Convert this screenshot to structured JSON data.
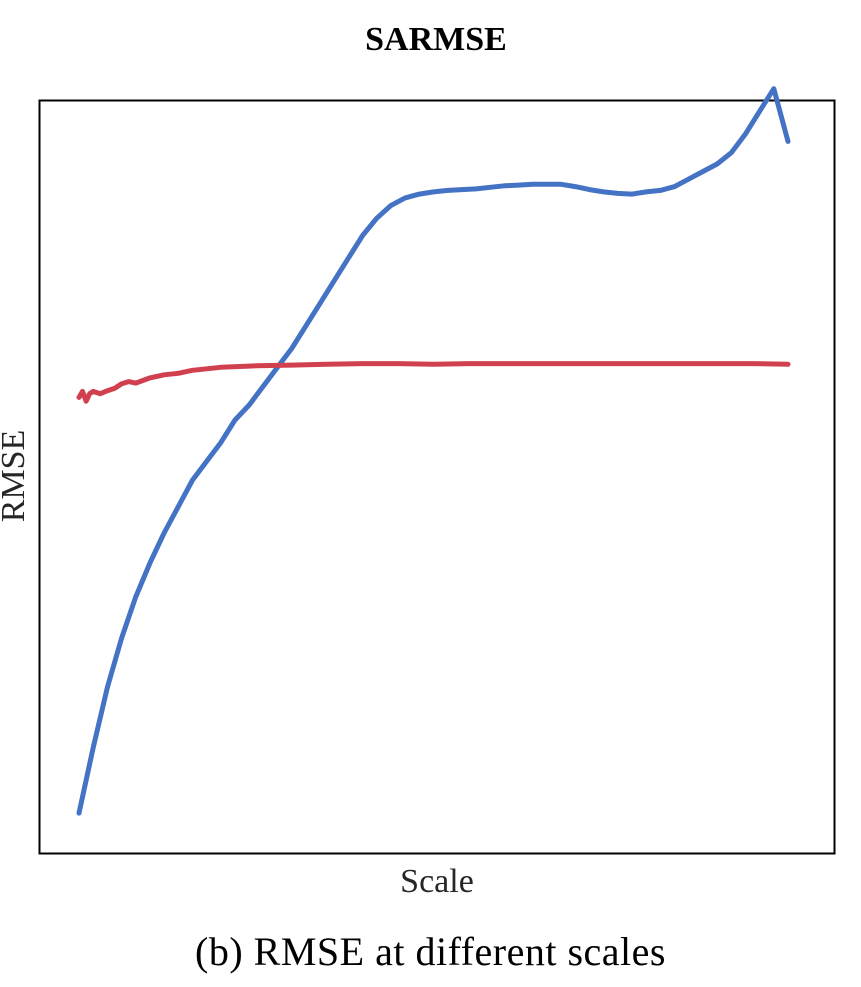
{
  "caption": "(b) RMSE at different scales",
  "chart_data": {
    "type": "line",
    "title": "SARMSE",
    "xlabel": "Scale",
    "ylabel": "RMSE",
    "xlim": [
      0,
      100
    ],
    "ylim": [
      0,
      100
    ],
    "grid": false,
    "legend": "none",
    "series": [
      {
        "color": "#4472C4",
        "x": [
          0,
          2,
          4,
          6,
          8,
          10,
          12,
          14,
          16,
          18,
          20,
          22,
          24,
          26,
          28,
          30,
          32,
          34,
          36,
          38,
          40,
          42,
          44,
          46,
          48,
          50,
          52,
          54,
          56,
          58,
          60,
          62,
          64,
          66,
          68,
          70,
          72,
          74,
          76,
          78,
          80,
          82,
          84,
          86,
          88,
          90,
          92,
          94,
          96,
          98,
          100
        ],
        "y": [
          5.3,
          14.0,
          22.0,
          28.5,
          34.0,
          38.5,
          42.5,
          46.0,
          49.5,
          52.0,
          54.5,
          57.5,
          59.5,
          62.0,
          64.5,
          67.0,
          70.0,
          73.0,
          76.0,
          79.0,
          82.0,
          84.3,
          86.0,
          87.0,
          87.5,
          87.8,
          88.0,
          88.1,
          88.2,
          88.4,
          88.6,
          88.7,
          88.8,
          88.8,
          88.8,
          88.5,
          88.1,
          87.8,
          87.6,
          87.5,
          87.8,
          88.0,
          88.5,
          89.5,
          90.5,
          91.5,
          93.0,
          95.5,
          98.5,
          101.5,
          94.5
        ]
      },
      {
        "color": "#D0404E",
        "x": [
          0,
          0.5,
          1,
          1.5,
          2,
          3,
          4,
          5,
          6,
          7,
          8,
          10,
          12,
          14,
          16,
          18,
          20,
          25,
          30,
          35,
          40,
          45,
          50,
          55,
          60,
          65,
          70,
          75,
          80,
          85,
          90,
          95,
          100
        ],
        "y": [
          60.5,
          61.3,
          60.0,
          61.0,
          61.3,
          61.0,
          61.4,
          61.7,
          62.3,
          62.6,
          62.4,
          63.1,
          63.5,
          63.7,
          64.1,
          64.3,
          64.5,
          64.7,
          64.8,
          64.9,
          65.0,
          65.0,
          64.9,
          65.0,
          65.0,
          65.0,
          65.0,
          65.0,
          65.0,
          65.0,
          65.0,
          65.0,
          64.9
        ]
      }
    ]
  }
}
